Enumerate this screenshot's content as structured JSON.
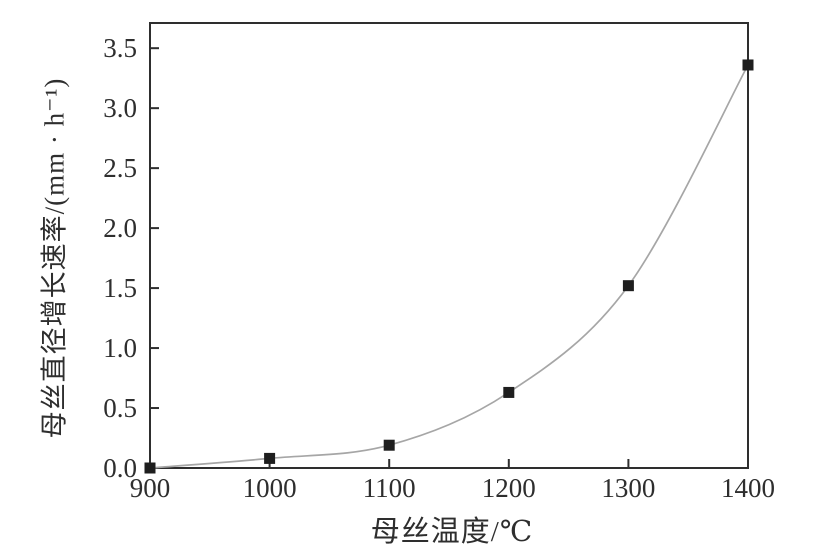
{
  "page": {
    "background_color": "#ffffff"
  },
  "chart_data": {
    "type": "line",
    "title": "",
    "xlabel": "母丝温度/℃",
    "ylabel": "母丝直径增长速率/(mm · h⁻¹)",
    "series": [
      {
        "name": "母丝直径增长速率",
        "x": [
          900,
          1000,
          1100,
          1200,
          1300,
          1400
        ],
        "y": [
          0.0,
          0.08,
          0.19,
          0.63,
          1.52,
          3.36
        ]
      }
    ],
    "xlim": [
      900,
      1400
    ],
    "ylim": [
      0.0,
      3.71
    ],
    "xticks": [
      "900",
      "1000",
      "1100",
      "1200",
      "1300",
      "1400"
    ],
    "yticks": [
      "0.0",
      "0.5",
      "1.0",
      "1.5",
      "2.0",
      "2.5",
      "3.0",
      "3.5"
    ],
    "grid": false,
    "legend": "none",
    "marker": "filled-square",
    "colors": {
      "line": "#a6a6a6",
      "marker": "#1e1e1e",
      "axis": "#2e2e2e",
      "text": "#2e2e2e"
    }
  }
}
